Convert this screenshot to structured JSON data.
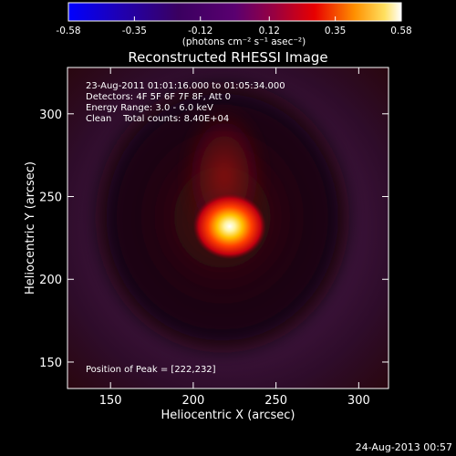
{
  "chart_data": {
    "type": "heatmap",
    "title": "Reconstructed RHESSI Image",
    "xlabel": "Heliocentric X (arcsec)",
    "ylabel": "Heliocentric Y (arcsec)",
    "xlim": [
      124,
      318
    ],
    "ylim": [
      134,
      328
    ],
    "x_ticks": [
      150,
      200,
      250,
      300
    ],
    "y_ticks": [
      150,
      200,
      250,
      300
    ],
    "colorbar": {
      "label": "(photons cm⁻² s⁻¹ asec⁻²)",
      "range": [
        -0.58,
        0.58
      ],
      "ticks": [
        "-0.58",
        "-0.35",
        "-0.12",
        "0.12",
        "0.35",
        "0.58"
      ]
    },
    "annotations": [
      "23-Aug-2011 01:01:16.000 to 01:05:34.000",
      "Detectors: 4F 5F 6F 7F 8F, Att 0",
      "Energy Range: 3.0 - 6.0 keV",
      "Clean    Total counts: 8.40E+04"
    ],
    "peak_text": "Position of Peak = [222,232]",
    "peak": {
      "x": 222,
      "y": 232,
      "value": 0.58
    },
    "timestamp": "24-Aug-2013 00:57"
  }
}
